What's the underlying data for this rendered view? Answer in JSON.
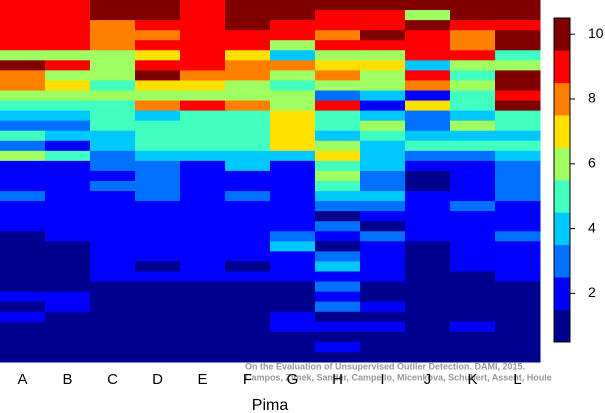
{
  "chart_data": {
    "type": "heatmap",
    "categories": [
      "A",
      "B",
      "C",
      "D",
      "E",
      "F",
      "G",
      "H",
      "I",
      "J",
      "K",
      "L"
    ],
    "x_label": "Pima",
    "annotations": [
      "On the Evaluation of Unsupervised Outlier Detection. DAMI, 2015.",
      "Campos, Zimek, Sander, Campello, Micenkova, Schubert, Assent, Houle"
    ],
    "colors": [
      "#00008f",
      "#0000ff",
      "#0070ff",
      "#00c8ff",
      "#40ffbf",
      "#a0ff60",
      "#ffe000",
      "#ff8000",
      "#ff0000",
      "#800000"
    ],
    "zlim": [
      0.5,
      10.5
    ],
    "zticks": [
      2,
      4,
      6,
      8,
      10
    ],
    "z": [
      [
        9,
        9,
        10,
        10,
        9,
        10,
        10,
        10,
        10,
        10,
        10,
        10
      ],
      [
        9,
        9,
        10,
        10,
        9,
        10,
        10,
        9,
        9,
        6,
        10,
        10
      ],
      [
        9,
        9,
        8,
        9,
        9,
        10,
        9,
        9,
        9,
        10,
        9,
        9
      ],
      [
        9,
        9,
        8,
        8,
        9,
        9,
        9,
        8,
        10,
        9,
        8,
        10
      ],
      [
        9,
        9,
        8,
        9,
        9,
        9,
        6,
        9,
        9,
        9,
        8,
        10
      ],
      [
        6,
        6,
        6,
        7,
        9,
        7,
        4,
        6,
        6,
        9,
        9,
        5
      ],
      [
        10,
        9,
        6,
        9,
        9,
        8,
        8,
        7,
        7,
        4,
        6,
        6
      ],
      [
        8,
        6,
        6,
        10,
        8,
        8,
        6,
        8,
        6,
        9,
        5,
        10
      ],
      [
        8,
        7,
        5,
        7,
        7,
        6,
        5,
        6,
        6,
        8,
        6,
        10
      ],
      [
        6,
        6,
        6,
        6,
        6,
        6,
        6,
        3,
        4,
        2,
        5,
        9
      ],
      [
        5,
        5,
        5,
        8,
        9,
        8,
        6,
        9,
        2,
        7,
        5,
        10
      ],
      [
        4,
        4,
        5,
        4,
        5,
        5,
        7,
        5,
        4,
        3,
        4,
        5
      ],
      [
        3,
        3,
        5,
        5,
        5,
        5,
        7,
        5,
        6,
        3,
        6,
        5
      ],
      [
        5,
        4,
        4,
        5,
        5,
        5,
        7,
        4,
        5,
        4,
        4,
        4
      ],
      [
        3,
        2,
        4,
        5,
        5,
        5,
        7,
        6,
        4,
        5,
        5,
        5
      ],
      [
        6,
        5,
        3,
        4,
        4,
        4,
        4,
        7,
        4,
        3,
        3,
        4
      ],
      [
        2,
        2,
        3,
        3,
        2,
        4,
        2,
        5,
        4,
        2,
        2,
        3
      ],
      [
        2,
        2,
        2,
        3,
        2,
        2,
        2,
        6,
        3,
        1,
        2,
        3
      ],
      [
        2,
        2,
        3,
        3,
        2,
        2,
        2,
        5,
        3,
        1,
        2,
        3
      ],
      [
        3,
        2,
        2,
        3,
        2,
        3,
        2,
        4,
        4,
        2,
        2,
        3
      ],
      [
        2,
        2,
        2,
        2,
        2,
        2,
        2,
        3,
        3,
        2,
        3,
        2
      ],
      [
        2,
        2,
        2,
        2,
        2,
        2,
        2,
        1,
        2,
        2,
        2,
        2
      ],
      [
        2,
        2,
        2,
        2,
        2,
        2,
        2,
        3,
        1,
        2,
        2,
        2
      ],
      [
        1,
        2,
        2,
        2,
        2,
        2,
        3,
        2,
        3,
        2,
        2,
        3
      ],
      [
        1,
        1,
        2,
        2,
        2,
        2,
        4,
        1,
        2,
        1,
        2,
        2
      ],
      [
        1,
        1,
        2,
        2,
        2,
        2,
        2,
        3,
        2,
        1,
        2,
        2
      ],
      [
        1,
        1,
        2,
        1,
        2,
        1,
        2,
        4,
        2,
        1,
        2,
        2
      ],
      [
        1,
        1,
        2,
        2,
        2,
        2,
        2,
        2,
        2,
        1,
        1,
        2
      ],
      [
        1,
        1,
        1,
        1,
        1,
        1,
        1,
        3,
        1,
        1,
        1,
        1
      ],
      [
        2,
        2,
        1,
        1,
        1,
        1,
        1,
        2,
        1,
        1,
        1,
        1
      ],
      [
        1,
        2,
        1,
        1,
        1,
        1,
        1,
        3,
        2,
        1,
        1,
        1
      ],
      [
        2,
        1,
        1,
        1,
        1,
        1,
        2,
        1,
        1,
        1,
        1,
        1
      ],
      [
        1,
        1,
        1,
        1,
        1,
        1,
        2,
        2,
        2,
        1,
        2,
        1
      ],
      [
        1,
        1,
        1,
        1,
        1,
        1,
        1,
        1,
        1,
        1,
        1,
        1
      ],
      [
        1,
        1,
        1,
        1,
        1,
        1,
        1,
        2,
        1,
        1,
        1,
        1
      ],
      [
        1,
        1,
        1,
        1,
        1,
        1,
        1,
        1,
        1,
        1,
        1,
        1
      ]
    ]
  }
}
